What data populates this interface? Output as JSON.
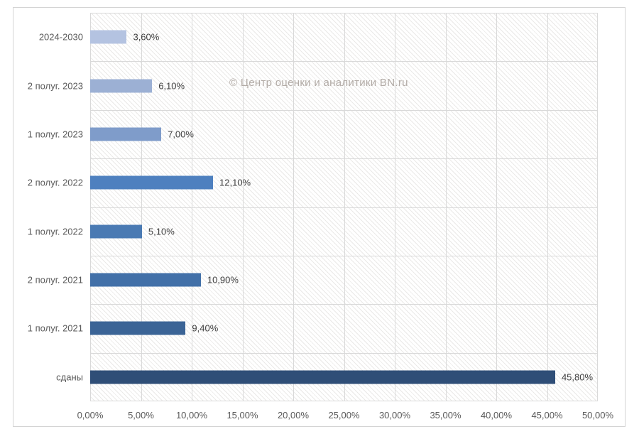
{
  "watermark": "© Центр оценки и аналитики BN.ru",
  "colors": {
    "gridline": "#d9d9d9",
    "frame_border": "#d4d4d4",
    "axis_text": "#595959",
    "data_label_text": "#404040",
    "watermark_text": "#b2aba6",
    "plot_background": "#ffffff"
  },
  "chart_data": {
    "type": "bar",
    "orientation": "horizontal",
    "title": "",
    "xlabel": "",
    "ylabel": "",
    "legend_position": "none",
    "grid": true,
    "plot_background_pattern": "diagonal-hatch",
    "xlim": [
      0,
      50
    ],
    "x_tick_step": 5,
    "x_ticks": [
      "0,00%",
      "5,00%",
      "10,00%",
      "15,00%",
      "20,00%",
      "25,00%",
      "30,00%",
      "35,00%",
      "40,00%",
      "45,00%",
      "50,00%"
    ],
    "categories": [
      "2024-2030",
      "2 полуг. 2023",
      "1 полуг. 2023",
      "2 полуг. 2022",
      "1 полуг. 2022",
      "2 полуг. 2021",
      "1 полуг. 2021",
      "сданы"
    ],
    "values": [
      3.6,
      6.1,
      7.0,
      12.1,
      5.1,
      10.9,
      9.4,
      45.8
    ],
    "value_labels": [
      "3,60%",
      "6,10%",
      "7,00%",
      "12,10%",
      "5,10%",
      "10,90%",
      "9,40%",
      "45,80%"
    ],
    "bar_colors": [
      "#b4c3e1",
      "#9cb0d4",
      "#7f9cca",
      "#4e80bf",
      "#4a7ab3",
      "#4270a8",
      "#3b6496",
      "#2f4e77"
    ]
  }
}
